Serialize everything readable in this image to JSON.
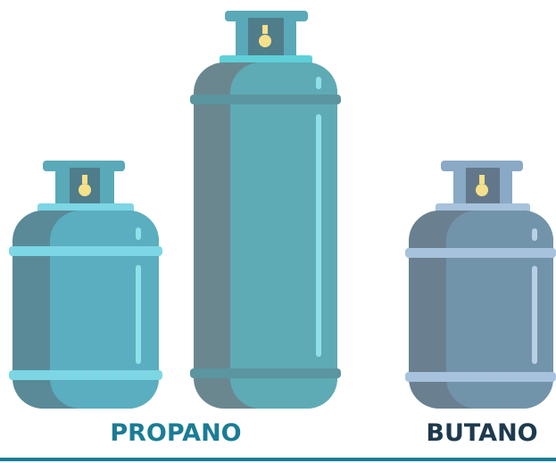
{
  "labels": {
    "propano": "PROPANO",
    "butano": "BUTANO"
  }
}
